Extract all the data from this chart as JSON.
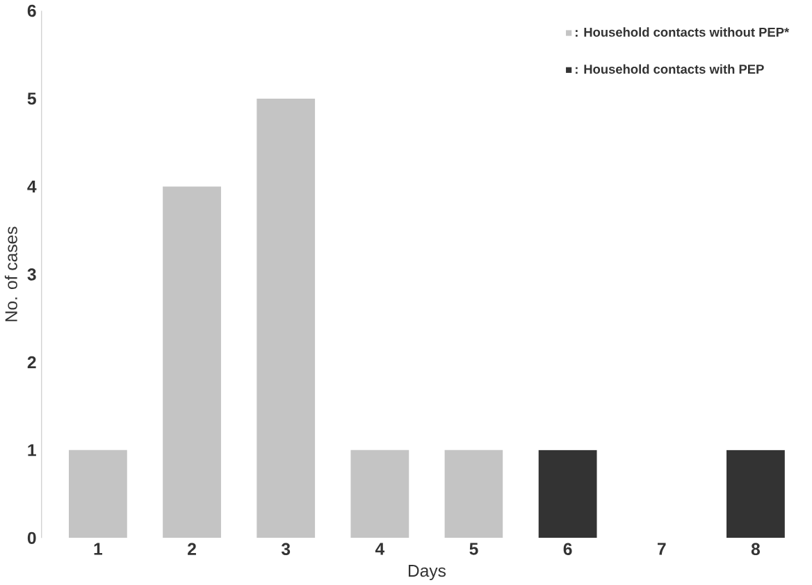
{
  "chart_data": {
    "type": "bar",
    "xlabel": "Days",
    "ylabel": "No. of cases",
    "categories": [
      "1",
      "2",
      "3",
      "4",
      "5",
      "6",
      "7",
      "8"
    ],
    "series": [
      {
        "name": ": Household contacts without PEP*",
        "color": "#c4c4c4",
        "values": [
          1,
          4,
          5,
          1,
          1,
          null,
          null,
          null
        ]
      },
      {
        "name": ": Household contacts with PEP",
        "color": "#333333",
        "values": [
          null,
          null,
          null,
          null,
          null,
          1,
          null,
          1
        ]
      }
    ],
    "ylim": [
      0,
      6
    ],
    "yticks": [
      0,
      1,
      2,
      3,
      4,
      5,
      6
    ],
    "grid": false,
    "legend": "top right"
  }
}
